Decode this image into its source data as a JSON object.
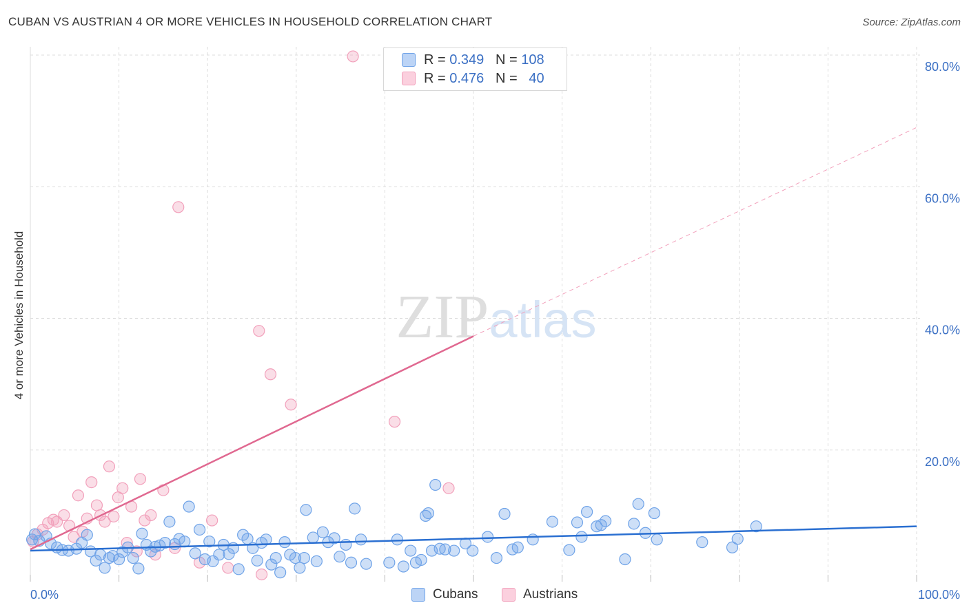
{
  "chart_data": {
    "type": "scatter",
    "title": "CUBAN VS AUSTRIAN 4 OR MORE VEHICLES IN HOUSEHOLD CORRELATION CHART",
    "source": "Source: ZipAtlas.com",
    "xlabel": "",
    "ylabel": "4 or more Vehicles in Household",
    "xlim": [
      0,
      100
    ],
    "ylim": [
      0,
      82
    ],
    "x_tick_labels": [
      "0.0%",
      "100.0%"
    ],
    "y_ticks": [
      20,
      40,
      60,
      80
    ],
    "y_tick_labels": [
      "20.0%",
      "40.0%",
      "60.0%",
      "80.0%"
    ],
    "watermark": "ZIPatlas",
    "colors": {
      "cubans": "#6fa3e8",
      "cubans_line": "#2a6fd1",
      "austrians": "#f2a0bb",
      "austrians_line": "#e06890",
      "tick": "#3a6fc4",
      "grid": "#dddddd"
    },
    "legend": [
      {
        "r_label": "R =",
        "r_value": "0.349",
        "n_label": "N =",
        "n_value": "108"
      },
      {
        "r_label": "R =",
        "r_value": "0.476",
        "n_label": "N =",
        "n_value": "40"
      }
    ],
    "series": [
      {
        "name": "Cubans",
        "trend": {
          "x0": 0,
          "y0": 4.7,
          "x1": 100,
          "y1": 8.4
        },
        "points": [
          [
            0.2,
            6.4
          ],
          [
            0.5,
            7.2
          ],
          [
            1.0,
            6.2
          ],
          [
            1.8,
            6.9
          ],
          [
            2.3,
            5.8
          ],
          [
            3.0,
            5.2
          ],
          [
            3.6,
            4.8
          ],
          [
            4.3,
            4.7
          ],
          [
            5.2,
            5.0
          ],
          [
            5.8,
            5.9
          ],
          [
            6.4,
            7.1
          ],
          [
            6.8,
            4.6
          ],
          [
            7.4,
            3.2
          ],
          [
            7.9,
            4.1
          ],
          [
            8.4,
            2.1
          ],
          [
            8.9,
            3.6
          ],
          [
            9.3,
            3.9
          ],
          [
            10.0,
            3.4
          ],
          [
            10.4,
            4.5
          ],
          [
            11.0,
            5.2
          ],
          [
            11.6,
            3.6
          ],
          [
            12.2,
            2.0
          ],
          [
            12.6,
            7.3
          ],
          [
            13.1,
            5.6
          ],
          [
            13.6,
            4.6
          ],
          [
            14.1,
            5.3
          ],
          [
            14.6,
            5.5
          ],
          [
            15.2,
            5.9
          ],
          [
            15.7,
            9.1
          ],
          [
            16.3,
            5.7
          ],
          [
            16.8,
            6.5
          ],
          [
            17.4,
            6.1
          ],
          [
            17.9,
            11.4
          ],
          [
            18.6,
            4.3
          ],
          [
            19.1,
            7.9
          ],
          [
            19.7,
            3.4
          ],
          [
            20.2,
            6.1
          ],
          [
            20.6,
            3.1
          ],
          [
            21.3,
            4.1
          ],
          [
            21.8,
            5.6
          ],
          [
            22.4,
            4.2
          ],
          [
            22.9,
            5.1
          ],
          [
            23.5,
            1.9
          ],
          [
            24.0,
            7.1
          ],
          [
            24.5,
            6.5
          ],
          [
            25.1,
            5.1
          ],
          [
            25.6,
            3.2
          ],
          [
            26.1,
            5.9
          ],
          [
            26.6,
            6.4
          ],
          [
            27.2,
            2.6
          ],
          [
            27.7,
            3.6
          ],
          [
            28.2,
            1.4
          ],
          [
            28.7,
            6.0
          ],
          [
            29.3,
            4.1
          ],
          [
            29.9,
            3.6
          ],
          [
            30.4,
            2.1
          ],
          [
            30.9,
            3.6
          ],
          [
            31.1,
            10.9
          ],
          [
            31.9,
            6.7
          ],
          [
            32.3,
            3.1
          ],
          [
            33.0,
            7.5
          ],
          [
            33.6,
            6.0
          ],
          [
            34.3,
            6.6
          ],
          [
            34.9,
            3.8
          ],
          [
            35.6,
            5.6
          ],
          [
            36.2,
            2.9
          ],
          [
            36.6,
            11.1
          ],
          [
            37.3,
            6.4
          ],
          [
            37.9,
            2.7
          ],
          [
            40.5,
            2.9
          ],
          [
            41.4,
            6.4
          ],
          [
            42.1,
            2.3
          ],
          [
            42.9,
            4.7
          ],
          [
            43.5,
            2.9
          ],
          [
            44.1,
            3.3
          ],
          [
            44.6,
            10.0
          ],
          [
            44.9,
            10.4
          ],
          [
            45.3,
            4.7
          ],
          [
            45.7,
            14.7
          ],
          [
            46.2,
            5.0
          ],
          [
            46.8,
            4.9
          ],
          [
            47.8,
            4.7
          ],
          [
            49.1,
            5.8
          ],
          [
            49.9,
            4.7
          ],
          [
            51.6,
            6.8
          ],
          [
            52.6,
            3.6
          ],
          [
            53.5,
            10.3
          ],
          [
            54.4,
            4.9
          ],
          [
            55.0,
            5.2
          ],
          [
            56.7,
            6.4
          ],
          [
            58.9,
            9.1
          ],
          [
            60.8,
            4.8
          ],
          [
            61.7,
            9.0
          ],
          [
            62.2,
            6.8
          ],
          [
            62.8,
            10.6
          ],
          [
            63.9,
            8.4
          ],
          [
            64.4,
            8.6
          ],
          [
            64.9,
            9.2
          ],
          [
            67.1,
            3.4
          ],
          [
            68.1,
            8.8
          ],
          [
            68.6,
            11.8
          ],
          [
            69.4,
            7.4
          ],
          [
            70.4,
            10.4
          ],
          [
            70.7,
            6.4
          ],
          [
            75.8,
            6.0
          ],
          [
            79.2,
            5.2
          ],
          [
            79.8,
            6.5
          ],
          [
            81.9,
            8.4
          ]
        ]
      },
      {
        "name": "Austrians",
        "trend": {
          "x0": 0,
          "y0": 4.9,
          "x1": 50,
          "y1": 37.3,
          "ext_x1": 100,
          "ext_y1": 69.0
        },
        "points": [
          [
            0.3,
            6.1
          ],
          [
            0.8,
            7.2
          ],
          [
            1.4,
            7.9
          ],
          [
            2.0,
            8.9
          ],
          [
            2.6,
            9.4
          ],
          [
            3.0,
            9.1
          ],
          [
            3.8,
            10.1
          ],
          [
            4.4,
            8.5
          ],
          [
            4.9,
            6.8
          ],
          [
            5.4,
            13.1
          ],
          [
            5.9,
            7.6
          ],
          [
            6.4,
            9.6
          ],
          [
            6.9,
            15.1
          ],
          [
            7.5,
            11.6
          ],
          [
            7.9,
            10.1
          ],
          [
            8.4,
            9.1
          ],
          [
            8.9,
            17.5
          ],
          [
            9.4,
            9.9
          ],
          [
            9.9,
            12.8
          ],
          [
            10.4,
            14.2
          ],
          [
            10.9,
            5.9
          ],
          [
            11.4,
            11.4
          ],
          [
            12.0,
            4.6
          ],
          [
            12.4,
            15.6
          ],
          [
            12.9,
            9.3
          ],
          [
            13.6,
            10.1
          ],
          [
            14.1,
            4.1
          ],
          [
            15.0,
            13.9
          ],
          [
            16.3,
            5.1
          ],
          [
            16.7,
            56.9
          ],
          [
            19.1,
            2.9
          ],
          [
            20.5,
            9.3
          ],
          [
            22.3,
            2.1
          ],
          [
            25.8,
            38.1
          ],
          [
            26.1,
            1.1
          ],
          [
            27.1,
            31.5
          ],
          [
            29.4,
            26.9
          ],
          [
            36.4,
            79.8
          ],
          [
            41.1,
            24.3
          ],
          [
            47.2,
            14.2
          ]
        ]
      }
    ]
  }
}
